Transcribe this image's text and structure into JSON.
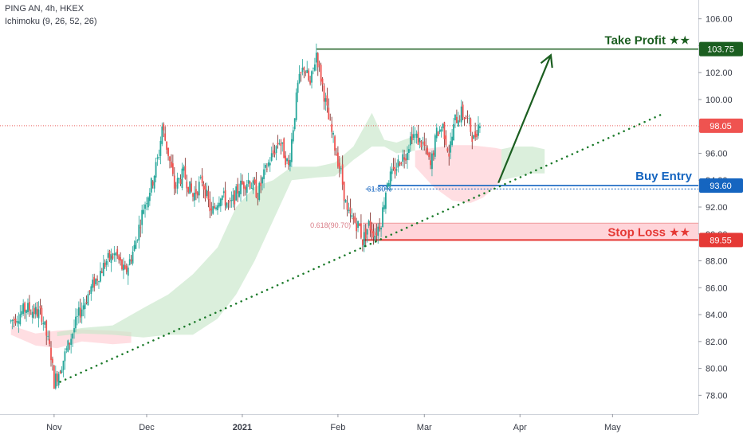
{
  "header": {
    "symbol_line": "PING AN, 4h, HKEX",
    "indicator_line": "Ichimoku (9, 26, 52, 26)"
  },
  "colors": {
    "bull": "#26a69a",
    "bear": "#ef5350",
    "take_profit": "#1b5e20",
    "buy_entry": "#1565c0",
    "stop_loss": "#e53935",
    "current_price": "#e53935",
    "trend": "#1b7a2a",
    "cloud_green": "#c8e6c9",
    "cloud_red": "#ffcdd2"
  },
  "annotations": {
    "take_profit_label": "Take Profit ★★",
    "buy_entry_label": "Buy Entry",
    "stop_loss_label": "Stop Loss ★★",
    "fib_618_label": "61.80%",
    "fib_0618_label": "0.618(90.70)"
  },
  "chart_data": {
    "type": "candlestick",
    "y_axis": {
      "ylim": [
        76.6,
        107.4
      ],
      "ticks": [
        "78.00",
        "80.00",
        "82.00",
        "84.00",
        "86.00",
        "88.00",
        "90.00",
        "92.00",
        "94.00",
        "96.00",
        "98.00",
        "100.00",
        "102.00",
        "104.00",
        "106.00"
      ]
    },
    "x_axis": {
      "ticks": [
        {
          "label": "Nov",
          "t": 1
        },
        {
          "label": "Dec",
          "t": 31
        },
        {
          "label": "2021",
          "t": 62
        },
        {
          "label": "Feb",
          "t": 93
        },
        {
          "label": "Mar",
          "t": 121
        },
        {
          "label": "Apr",
          "t": 152
        },
        {
          "label": "May",
          "t": 182
        }
      ]
    },
    "levels": {
      "take_profit": 103.75,
      "current_price": 98.05,
      "buy_entry": 93.6,
      "stop_loss": 89.55,
      "fib_0618": 90.7
    },
    "price_labels": {
      "take_profit": "103.75",
      "current_price": "98.05",
      "buy_entry": "93.60",
      "stop_loss": "89.55"
    },
    "trendline": {
      "from": [
        3,
        79.0
      ],
      "to": [
        198,
        98.9
      ]
    },
    "arrow": {
      "from": [
        145,
        93.8
      ],
      "to": [
        162,
        103.3
      ]
    },
    "stop_zone": [
      89.55,
      90.8
    ],
    "series": [
      {
        "name": "close",
        "points": [
          [
            -13,
            83.5
          ],
          [
            -8,
            84.5
          ],
          [
            -3,
            84.0
          ],
          [
            0,
            81.0
          ],
          [
            1,
            79.0
          ],
          [
            3,
            80.0
          ],
          [
            6,
            82.0
          ],
          [
            9,
            84.0
          ],
          [
            12,
            85.5
          ],
          [
            15,
            86.8
          ],
          [
            18,
            88.0
          ],
          [
            21,
            88.5
          ],
          [
            24,
            87.0
          ],
          [
            27,
            89.0
          ],
          [
            30,
            92.0
          ],
          [
            33,
            94.0
          ],
          [
            35,
            96.0
          ],
          [
            36,
            98.0
          ],
          [
            38,
            96.0
          ],
          [
            40,
            93.5
          ],
          [
            43,
            94.5
          ],
          [
            46,
            92.8
          ],
          [
            49,
            94.0
          ],
          [
            52,
            91.5
          ],
          [
            55,
            93.0
          ],
          [
            58,
            92.0
          ],
          [
            61,
            93.5
          ],
          [
            64,
            94.0
          ],
          [
            67,
            93.0
          ],
          [
            70,
            95.0
          ],
          [
            72,
            96.0
          ],
          [
            74,
            97.0
          ],
          [
            77,
            95.0
          ],
          [
            80,
            101.0
          ],
          [
            82,
            102.5
          ],
          [
            84,
            101.0
          ],
          [
            86,
            103.5
          ],
          [
            88,
            101.0
          ],
          [
            90,
            98.5
          ],
          [
            92,
            96.5
          ],
          [
            94,
            94.5
          ],
          [
            96,
            91.5
          ],
          [
            98,
            91.0
          ],
          [
            100,
            90.5
          ],
          [
            101,
            89.5
          ],
          [
            103,
            90.7
          ],
          [
            105,
            90.0
          ],
          [
            107,
            91.0
          ],
          [
            109,
            94.0
          ],
          [
            111,
            94.5
          ],
          [
            113,
            95.5
          ],
          [
            115,
            96.0
          ],
          [
            117,
            97.5
          ],
          [
            119,
            97.0
          ],
          [
            121,
            96.5
          ],
          [
            123,
            95.0
          ],
          [
            125,
            97.5
          ],
          [
            127,
            98.0
          ],
          [
            129,
            96.0
          ],
          [
            131,
            98.5
          ],
          [
            133,
            99.0
          ],
          [
            135,
            98.5
          ],
          [
            137,
            97.0
          ],
          [
            139,
            98.5
          ]
        ]
      }
    ],
    "cloud": [
      {
        "kind": "red",
        "a": [
          [
            -13,
            82.5
          ],
          [
            -5,
            81.7
          ],
          [
            2,
            81.5
          ],
          [
            10,
            82.0
          ],
          [
            20,
            81.8
          ],
          [
            26,
            81.9
          ]
        ],
        "b": [
          [
            26,
            82.7
          ],
          [
            20,
            82.8
          ],
          [
            10,
            82.9
          ],
          [
            2,
            82.8
          ],
          [
            -5,
            82.6
          ],
          [
            -13,
            83.2
          ]
        ]
      },
      {
        "kind": "green",
        "a": [
          [
            2,
            82.7
          ],
          [
            10,
            83.0
          ],
          [
            20,
            83.2
          ],
          [
            30,
            84.5
          ],
          [
            38,
            85.5
          ],
          [
            46,
            87.0
          ],
          [
            54,
            89.0
          ],
          [
            60,
            92.0
          ],
          [
            66,
            93.5
          ],
          [
            72,
            94.0
          ],
          [
            78,
            95.0
          ],
          [
            86,
            95.0
          ],
          [
            92,
            95.3
          ],
          [
            98,
            96.5
          ],
          [
            104,
            99.0
          ],
          [
            108,
            97.0
          ],
          [
            112,
            96.8
          ],
          [
            118,
            97.3
          ]
        ],
        "b": [
          [
            118,
            96.2
          ],
          [
            112,
            96.0
          ],
          [
            108,
            96.5
          ],
          [
            104,
            96.5
          ],
          [
            98,
            95.5
          ],
          [
            92,
            94.3
          ],
          [
            86,
            94.2
          ],
          [
            78,
            94.0
          ],
          [
            72,
            91.0
          ],
          [
            66,
            88.0
          ],
          [
            60,
            85.5
          ],
          [
            54,
            83.7
          ],
          [
            46,
            82.5
          ],
          [
            38,
            82.5
          ],
          [
            30,
            82.3
          ],
          [
            20,
            82.5
          ],
          [
            10,
            82.6
          ],
          [
            2,
            82.4
          ]
        ]
      },
      {
        "kind": "red",
        "a": [
          [
            118,
            96.2
          ],
          [
            124,
            96.4
          ],
          [
            130,
            96.6
          ],
          [
            136,
            96.6
          ],
          [
            140,
            96.5
          ],
          [
            144,
            96.4
          ],
          [
            146,
            96.3
          ]
        ],
        "b": [
          [
            146,
            94.0
          ],
          [
            144,
            93.5
          ],
          [
            140,
            92.7
          ],
          [
            136,
            92.3
          ],
          [
            130,
            92.5
          ],
          [
            124,
            93.5
          ],
          [
            118,
            95.0
          ]
        ]
      },
      {
        "kind": "green",
        "a": [
          [
            146,
            96.3
          ],
          [
            150,
            96.5
          ],
          [
            156,
            96.5
          ],
          [
            160,
            96.3
          ]
        ],
        "b": [
          [
            160,
            94.5
          ],
          [
            156,
            94.5
          ],
          [
            150,
            94.2
          ],
          [
            146,
            94.0
          ]
        ]
      }
    ]
  }
}
